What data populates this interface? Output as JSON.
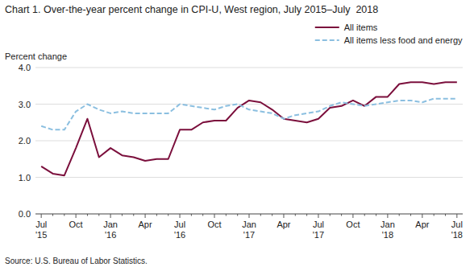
{
  "chart_data": {
    "type": "line",
    "title": "Chart 1. Over-the-year percent change in CPI-U, West region, July 2015–July  2018",
    "y_label": "Percent change",
    "source": "Source: U.S. Bureau of Labor Statistics.",
    "categories": [
      "Jul\n'15",
      null,
      null,
      "Oct",
      null,
      null,
      "Jan\n'16",
      null,
      null,
      "Apr",
      null,
      null,
      "Jul\n'16",
      null,
      null,
      "Oct",
      null,
      null,
      "Jan\n'17",
      null,
      null,
      "Apr",
      null,
      null,
      "Jul\n'17",
      null,
      null,
      "Oct",
      null,
      null,
      "Jan\n'18",
      null,
      null,
      "Apr",
      null,
      null,
      "Jul\n'18"
    ],
    "series": [
      {
        "name": "All items",
        "color": "#7B0F3C",
        "line_style": "solid",
        "values": [
          1.3,
          1.1,
          1.05,
          1.8,
          2.6,
          1.55,
          1.8,
          1.6,
          1.55,
          1.45,
          1.5,
          1.5,
          2.3,
          2.3,
          2.5,
          2.55,
          2.55,
          2.9,
          3.1,
          3.05,
          2.85,
          2.6,
          2.55,
          2.5,
          2.6,
          2.9,
          2.95,
          3.1,
          2.95,
          3.2,
          3.2,
          3.55,
          3.6,
          3.6,
          3.55,
          3.6,
          3.6
        ]
      },
      {
        "name": "All items less food and energy",
        "color": "#8BBFE0",
        "line_style": "dashed",
        "values": [
          2.4,
          2.3,
          2.3,
          2.8,
          3.0,
          2.85,
          2.75,
          2.8,
          2.75,
          2.75,
          2.75,
          2.75,
          3.0,
          2.95,
          2.9,
          2.85,
          2.95,
          3.0,
          2.85,
          2.8,
          2.75,
          2.6,
          2.7,
          2.75,
          2.8,
          2.95,
          3.05,
          3.0,
          2.95,
          3.0,
          3.05,
          3.1,
          3.1,
          3.05,
          3.15,
          3.15,
          3.15
        ]
      }
    ],
    "ylim": [
      0.0,
      4.0
    ],
    "yticks": [
      {
        "value": 0.0,
        "label": "0.0"
      },
      {
        "value": 1.0,
        "label": "1.0"
      },
      {
        "value": 2.0,
        "label": "2.0"
      },
      {
        "value": 3.0,
        "label": "3.0"
      },
      {
        "value": 4.0,
        "label": "4.0"
      }
    ],
    "grid": true,
    "legend": "upper-right"
  }
}
